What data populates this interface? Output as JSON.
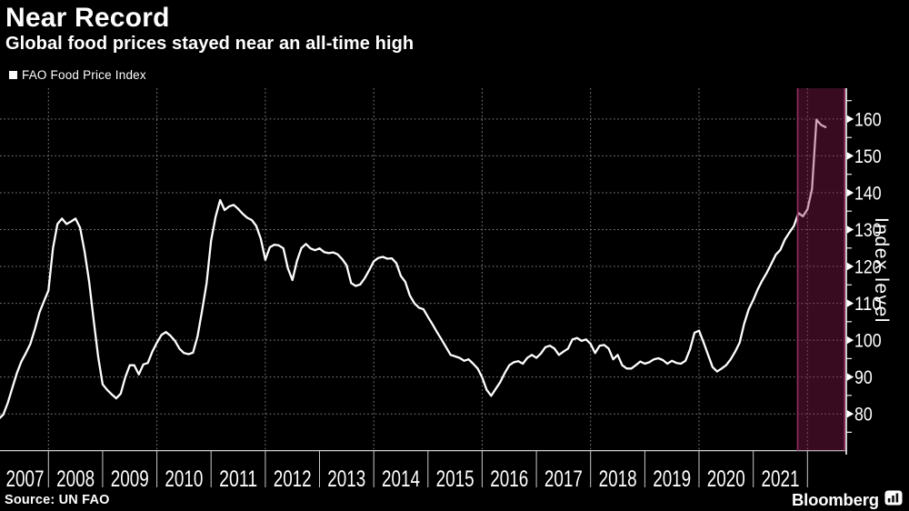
{
  "title": "Near Record",
  "subtitle": "Global food prices stayed near an all-time high",
  "legend": {
    "label": "FAO Food Price Index",
    "marker": "filled-square",
    "marker_color": "#ffffff"
  },
  "source": "Source: UN FAO",
  "brand": {
    "name": "Bloomberg",
    "icon": "bar-chart-icon"
  },
  "colors": {
    "background": "#000000",
    "text": "#ffffff",
    "line": "#ffffff",
    "grid": "#828282",
    "y_axis": "#ededed",
    "x_axis": "#cfcfcf",
    "year_tick": "#c9c9c9",
    "highlight_fill": "rgba(143,27,82,0.40)",
    "highlight_edge": "#8e2e5c"
  },
  "chart_data": {
    "type": "line",
    "title": "Near Record",
    "subtitle": "Global food prices stayed near an all-time high",
    "ylabel": "Index level",
    "legend_entries": [
      "FAO Food Price Index"
    ],
    "legend_position": "top-left",
    "grid": "dotted; horizontal every 10 units, vertical every 2 years",
    "x_start": "2007-01",
    "x_end": "2022-05",
    "frequency": "monthly",
    "x_tick_years": [
      "2007",
      "2008",
      "2009",
      "2010",
      "2011",
      "2012",
      "2013",
      "2014",
      "2015",
      "2016",
      "2017",
      "2018",
      "2019",
      "2020",
      "2021"
    ],
    "y_ticks": [
      80,
      90,
      100,
      110,
      120,
      130,
      140,
      150,
      160
    ],
    "y_minor_tick_step": 5,
    "ylim": [
      70,
      168
    ],
    "highlight_band": {
      "from": "2021-11",
      "to": "plot-right-edge"
    },
    "series": [
      {
        "name": "FAO Food Price Index",
        "values": [
          78.0,
          78.6,
          79.8,
          83.0,
          87.0,
          91.0,
          94.2,
          96.5,
          99.0,
          103.0,
          107.5,
          110.5,
          113.5,
          125.0,
          131.5,
          133.0,
          131.5,
          132.2,
          133.0,
          130.5,
          124.0,
          116.0,
          105.5,
          95.5,
          88.0,
          86.5,
          85.3,
          84.2,
          85.5,
          89.9,
          93.2,
          93.2,
          90.7,
          93.4,
          93.8,
          96.9,
          99.3,
          101.4,
          102.2,
          101.2,
          99.8,
          97.7,
          96.5,
          96.2,
          96.6,
          101.0,
          108.0,
          115.5,
          127.0,
          133.5,
          138.0,
          135.3,
          136.3,
          136.7,
          135.6,
          134.3,
          133.2,
          132.6,
          131.0,
          127.5,
          121.8,
          125.2,
          125.9,
          125.7,
          124.9,
          119.5,
          116.3,
          121.5,
          125.0,
          126.1,
          124.9,
          124.4,
          124.9,
          123.9,
          123.6,
          123.8,
          123.3,
          122.0,
          120.3,
          115.5,
          114.7,
          115.1,
          116.8,
          119.0,
          121.4,
          122.3,
          122.6,
          122.1,
          122.2,
          120.9,
          117.4,
          115.8,
          112.1,
          110.0,
          108.8,
          108.4,
          106.3,
          104.3,
          102.2,
          100.2,
          98.1,
          96.0,
          95.6,
          95.2,
          94.4,
          94.8,
          93.6,
          92.3,
          89.9,
          86.5,
          84.9,
          86.8,
          88.6,
          91.1,
          93.2,
          94.0,
          94.3,
          93.6,
          95.2,
          96.0,
          95.2,
          96.4,
          98.1,
          98.5,
          97.7,
          96.0,
          96.9,
          97.7,
          100.2,
          100.6,
          99.8,
          100.2,
          99.0,
          96.5,
          98.5,
          98.7,
          97.7,
          94.8,
          96.0,
          93.2,
          92.3,
          92.3,
          93.2,
          94.2,
          93.6,
          94.0,
          94.8,
          95.1,
          94.6,
          93.6,
          94.4,
          93.8,
          93.6,
          94.4,
          97.5,
          102.0,
          102.6,
          99.4,
          96.0,
          92.7,
          91.5,
          92.3,
          93.2,
          94.8,
          96.9,
          99.3,
          104.5,
          108.4,
          110.9,
          113.8,
          116.2,
          118.3,
          120.7,
          123.2,
          124.5,
          127.3,
          129.2,
          131.0,
          134.5,
          133.6,
          135.5,
          141.0,
          159.8,
          158.4,
          157.8
        ]
      }
    ]
  }
}
